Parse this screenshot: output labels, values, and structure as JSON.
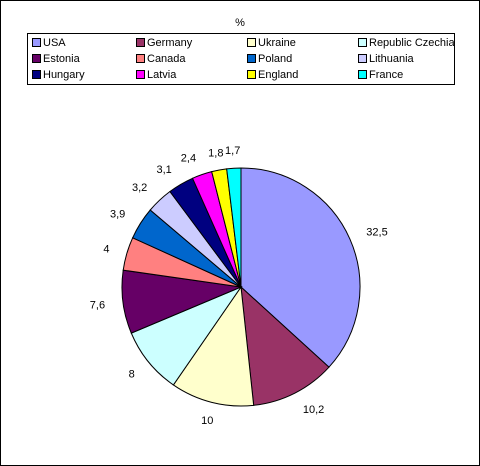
{
  "chart_data": {
    "type": "pie",
    "title": "%",
    "legend_position": "top",
    "categories": [
      "USA",
      "Germany",
      "Ukraine",
      "Republic Czechia",
      "Estonia",
      "Canada",
      "Poland",
      "Lithuania",
      "Hungary",
      "Latvia",
      "England",
      "France"
    ],
    "values": [
      32.5,
      10.2,
      10,
      8,
      7.6,
      4,
      3.9,
      3.2,
      3.1,
      2.4,
      1.8,
      1.7
    ],
    "value_labels": [
      "32,5",
      "10,2",
      "10",
      "8",
      "7,6",
      "4",
      "3,9",
      "3,2",
      "3,1",
      "2,4",
      "1,8",
      "1,7"
    ],
    "colors": [
      "#9999FF",
      "#993366",
      "#FFFFCC",
      "#CCFFFF",
      "#660066",
      "#FF8080",
      "#0066CC",
      "#CCCCFF",
      "#000080",
      "#FF00FF",
      "#FFFF00",
      "#00FFFF"
    ]
  }
}
